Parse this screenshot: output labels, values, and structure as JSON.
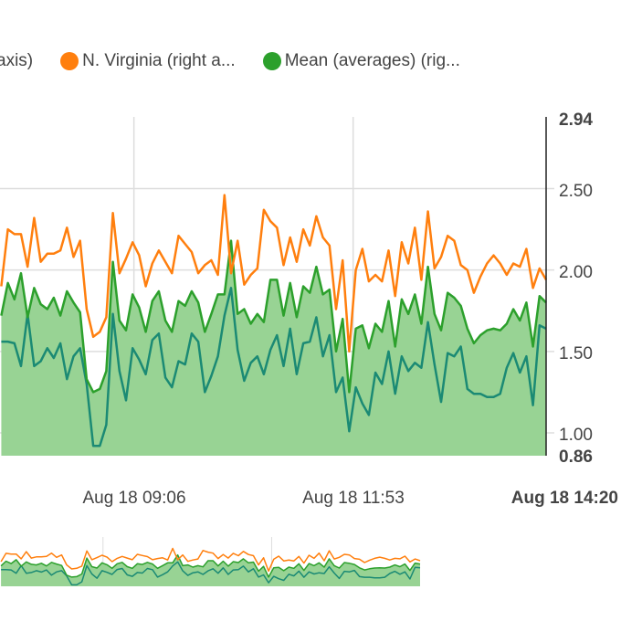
{
  "legend": [
    {
      "label": "axis)",
      "color": "#1b8a74"
    },
    {
      "label": "N. Virginia (right a...",
      "color": "#ff7f0e"
    },
    {
      "label": "Mean (averages) (rig...",
      "color": "#2ca02c"
    }
  ],
  "chart_data": {
    "type": "line",
    "title": "",
    "xlabel": "",
    "ylabel": "",
    "y_axis_position": "right",
    "ylim": [
      0.86,
      2.94
    ],
    "y_ticks": [
      "2.94",
      "2.50",
      "2.00",
      "1.50",
      "1.00",
      "0.86"
    ],
    "x_ticks": [
      "Aug 18 09:06",
      "Aug 18 11:53",
      "Aug 18 14:20"
    ],
    "x_range": [
      "Aug 18 07:24",
      "Aug 18 14:20"
    ],
    "grid": true,
    "legend_position": "top",
    "x": [
      "07:25",
      "07:30",
      "07:35",
      "07:40",
      "07:45",
      "07:50",
      "07:55",
      "08:00",
      "08:05",
      "08:10",
      "08:15",
      "08:20",
      "08:25",
      "08:30",
      "08:35",
      "08:40",
      "08:45",
      "08:50",
      "08:55",
      "09:00",
      "09:05",
      "09:10",
      "09:15",
      "09:20",
      "09:25",
      "09:30",
      "09:35",
      "09:40",
      "09:45",
      "09:50",
      "09:55",
      "10:00",
      "10:05",
      "10:10",
      "10:15",
      "10:20",
      "10:25",
      "10:30",
      "10:35",
      "10:40",
      "10:45",
      "10:50",
      "10:55",
      "11:00",
      "11:05",
      "11:10",
      "11:15",
      "11:20",
      "11:25",
      "11:30",
      "11:35",
      "11:40",
      "11:45",
      "11:50",
      "11:55",
      "12:00",
      "12:05",
      "12:10",
      "12:15",
      "12:20",
      "12:25",
      "12:30",
      "12:35",
      "12:40",
      "12:45",
      "12:50",
      "12:55",
      "13:00",
      "13:05",
      "13:10",
      "13:15",
      "13:20",
      "13:25",
      "13:30",
      "13:35",
      "13:40",
      "13:45",
      "13:50",
      "13:55",
      "14:00",
      "14:05",
      "14:10",
      "14:15",
      "14:20"
    ],
    "series": [
      {
        "legend_label": "axis)",
        "color": "#1b8a74",
        "style": "line",
        "values": [
          1.56,
          1.56,
          1.55,
          1.41,
          1.73,
          1.41,
          1.44,
          1.52,
          1.46,
          1.55,
          1.33,
          1.47,
          1.52,
          1.3,
          0.92,
          0.92,
          1.05,
          1.73,
          1.38,
          1.2,
          1.52,
          1.45,
          1.36,
          1.57,
          1.61,
          1.34,
          1.28,
          1.44,
          1.42,
          1.61,
          1.56,
          1.25,
          1.35,
          1.47,
          1.72,
          1.89,
          1.51,
          1.32,
          1.43,
          1.47,
          1.36,
          1.51,
          1.6,
          1.41,
          1.64,
          1.36,
          1.55,
          1.56,
          1.71,
          1.47,
          1.6,
          1.25,
          1.34,
          1.01,
          1.28,
          1.18,
          1.11,
          1.37,
          1.3,
          1.5,
          1.24,
          1.47,
          1.38,
          1.43,
          1.4,
          1.68,
          1.42,
          1.19,
          1.49,
          1.47,
          1.53,
          1.27,
          1.24,
          1.24,
          1.22,
          1.22,
          1.24,
          1.4,
          1.49,
          1.37,
          1.47,
          1.17,
          1.66,
          1.64
        ]
      },
      {
        "name": "N. Virginia (right a...",
        "color": "#ff7f0e",
        "style": "line",
        "values": [
          1.9,
          2.25,
          2.22,
          2.22,
          2.02,
          2.32,
          2.05,
          2.1,
          2.1,
          2.12,
          2.26,
          2.08,
          2.18,
          1.76,
          1.59,
          1.62,
          1.71,
          2.35,
          1.98,
          2.07,
          2.17,
          2.09,
          1.9,
          2.04,
          2.12,
          2.05,
          1.98,
          2.21,
          2.16,
          2.11,
          1.98,
          2.03,
          2.06,
          1.97,
          2.46,
          1.98,
          2.18,
          1.91,
          1.97,
          2.01,
          2.37,
          2.3,
          2.26,
          2.03,
          2.2,
          2.05,
          2.25,
          2.15,
          2.33,
          2.2,
          2.15,
          1.76,
          2.06,
          1.5,
          2.0,
          2.13,
          1.93,
          1.97,
          1.93,
          2.12,
          1.84,
          2.17,
          2.04,
          2.26,
          1.94,
          2.36,
          2.01,
          2.08,
          2.21,
          2.18,
          2.03,
          2.0,
          1.86,
          1.96,
          2.04,
          2.09,
          2.04,
          1.97,
          2.04,
          2.02,
          2.13,
          1.89,
          2.01,
          1.94
        ]
      },
      {
        "name": "Mean (averages) (rig...",
        "color": "#2ca02c",
        "fill": "#98d394",
        "style": "area",
        "values": [
          1.72,
          1.92,
          1.82,
          1.98,
          1.71,
          1.89,
          1.79,
          1.76,
          1.83,
          1.72,
          1.87,
          1.8,
          1.74,
          1.33,
          1.25,
          1.27,
          1.38,
          2.05,
          1.69,
          1.63,
          1.85,
          1.77,
          1.62,
          1.81,
          1.87,
          1.69,
          1.62,
          1.81,
          1.78,
          1.87,
          1.8,
          1.62,
          1.73,
          1.85,
          1.85,
          2.18,
          1.73,
          1.76,
          1.67,
          1.73,
          1.68,
          1.94,
          1.94,
          1.72,
          1.92,
          1.71,
          1.9,
          1.86,
          2.02,
          1.85,
          1.88,
          1.5,
          1.7,
          1.25,
          1.64,
          1.66,
          1.52,
          1.67,
          1.62,
          1.81,
          1.53,
          1.82,
          1.73,
          1.85,
          1.67,
          2.02,
          1.73,
          1.63,
          1.86,
          1.83,
          1.78,
          1.64,
          1.55,
          1.6,
          1.63,
          1.64,
          1.63,
          1.67,
          1.76,
          1.69,
          1.8,
          1.53,
          1.84,
          1.8
        ]
      }
    ]
  }
}
